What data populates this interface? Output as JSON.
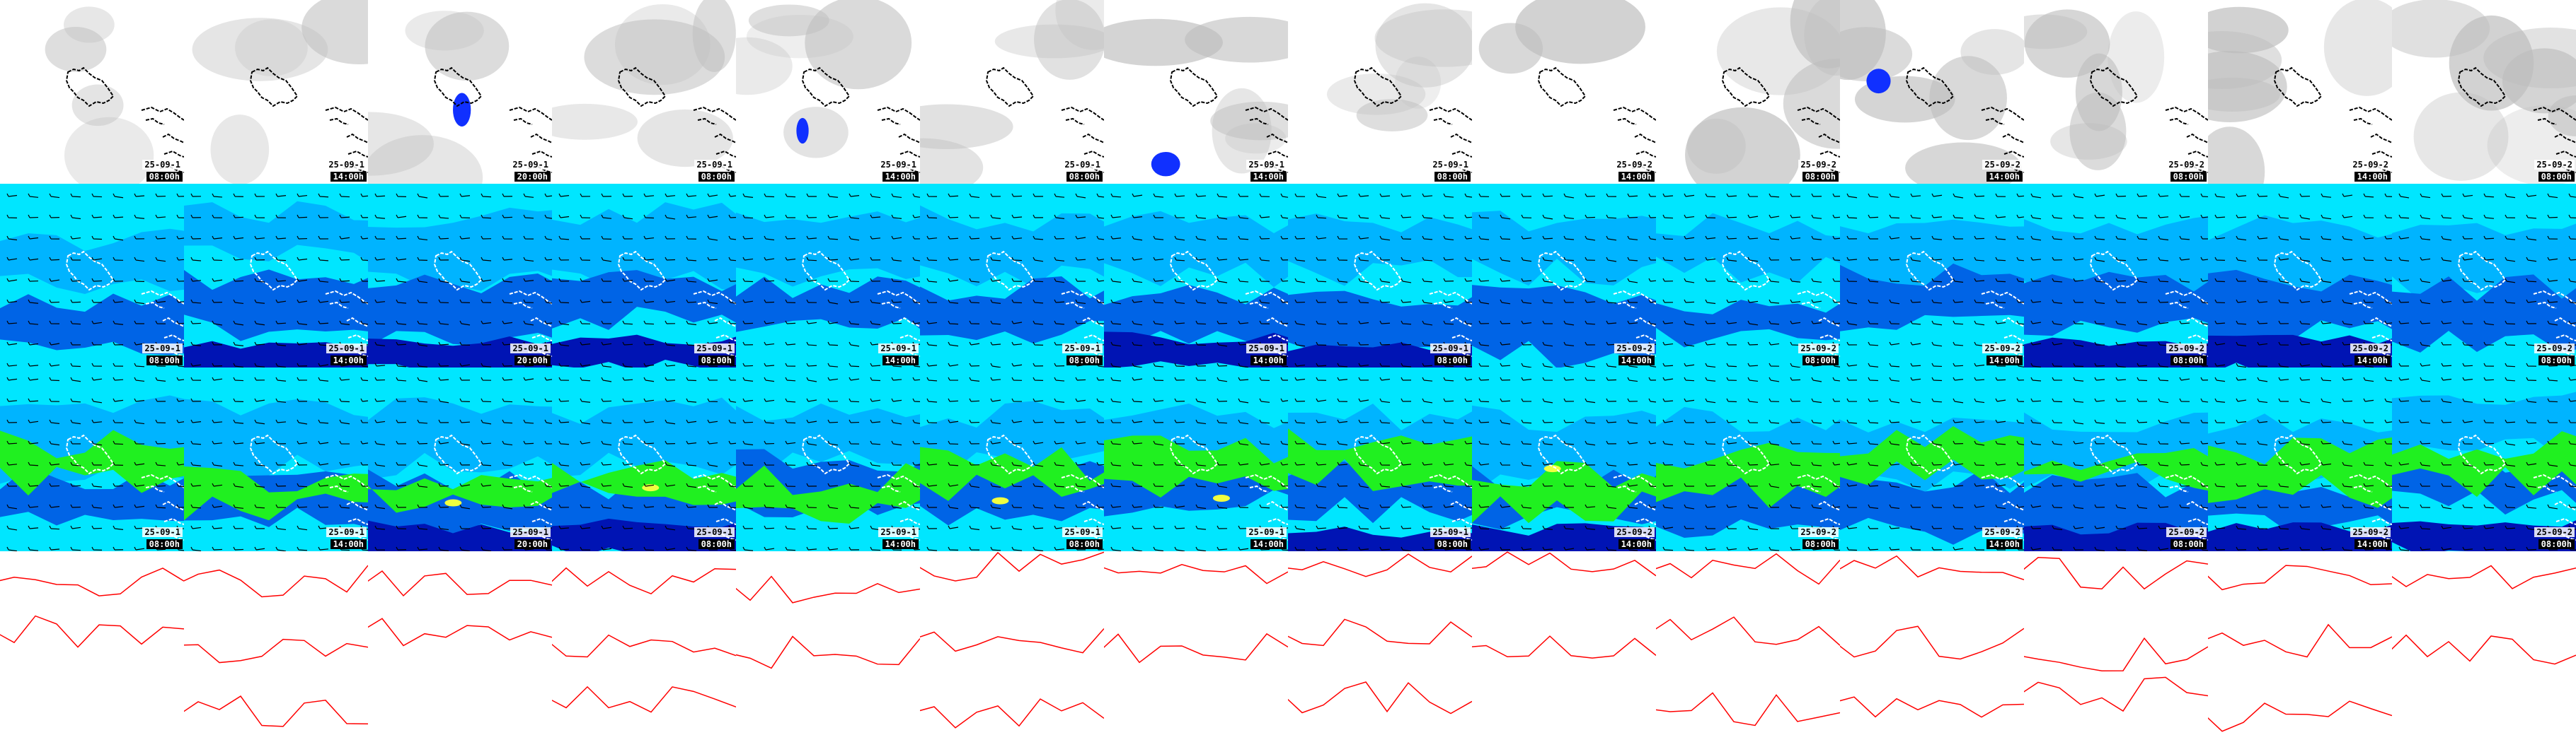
{
  "colors": {
    "cloud_bg": "#ffffff",
    "cloud_grey": "#bdbdbd",
    "precip_blue": "#1030ff",
    "wind_cyan": "#00e6ff",
    "wind_light_blue": "#00b4ff",
    "wind_blue": "#0064e6",
    "wind_dark_blue": "#0014b4",
    "wind_green": "#20f020",
    "wind_yellow": "#f0ff40",
    "isobar_red": "#ff0000",
    "coast": "#000000"
  },
  "columns": [
    {
      "date": "25-09-1",
      "hour": "08:00h"
    },
    {
      "date": "25-09-1",
      "hour": "14:00h"
    },
    {
      "date": "25-09-1",
      "hour": "20:00h"
    },
    {
      "date": "25-09-1",
      "hour": "08:00h"
    },
    {
      "date": "25-09-1",
      "hour": "14:00h"
    },
    {
      "date": "25-09-1",
      "hour": "08:00h"
    },
    {
      "date": "25-09-1",
      "hour": "14:00h"
    },
    {
      "date": "25-09-1",
      "hour": "08:00h"
    },
    {
      "date": "25-09-2",
      "hour": "14:00h"
    },
    {
      "date": "25-09-2",
      "hour": "08:00h"
    },
    {
      "date": "25-09-2",
      "hour": "14:00h"
    },
    {
      "date": "25-09-2",
      "hour": "08:00h"
    },
    {
      "date": "25-09-2",
      "hour": "14:00h"
    },
    {
      "date": "25-09-2",
      "hour": "08:00h"
    }
  ],
  "rows": [
    {
      "name": "cloud-precip-row",
      "icon": "cloud-icon"
    },
    {
      "name": "wind-10m-row",
      "icon": "wind-barb-icon"
    },
    {
      "name": "wind-gust-row",
      "icon": "wind-barb-icon"
    },
    {
      "name": "isobar-row",
      "icon": "pressure-icon"
    }
  ]
}
